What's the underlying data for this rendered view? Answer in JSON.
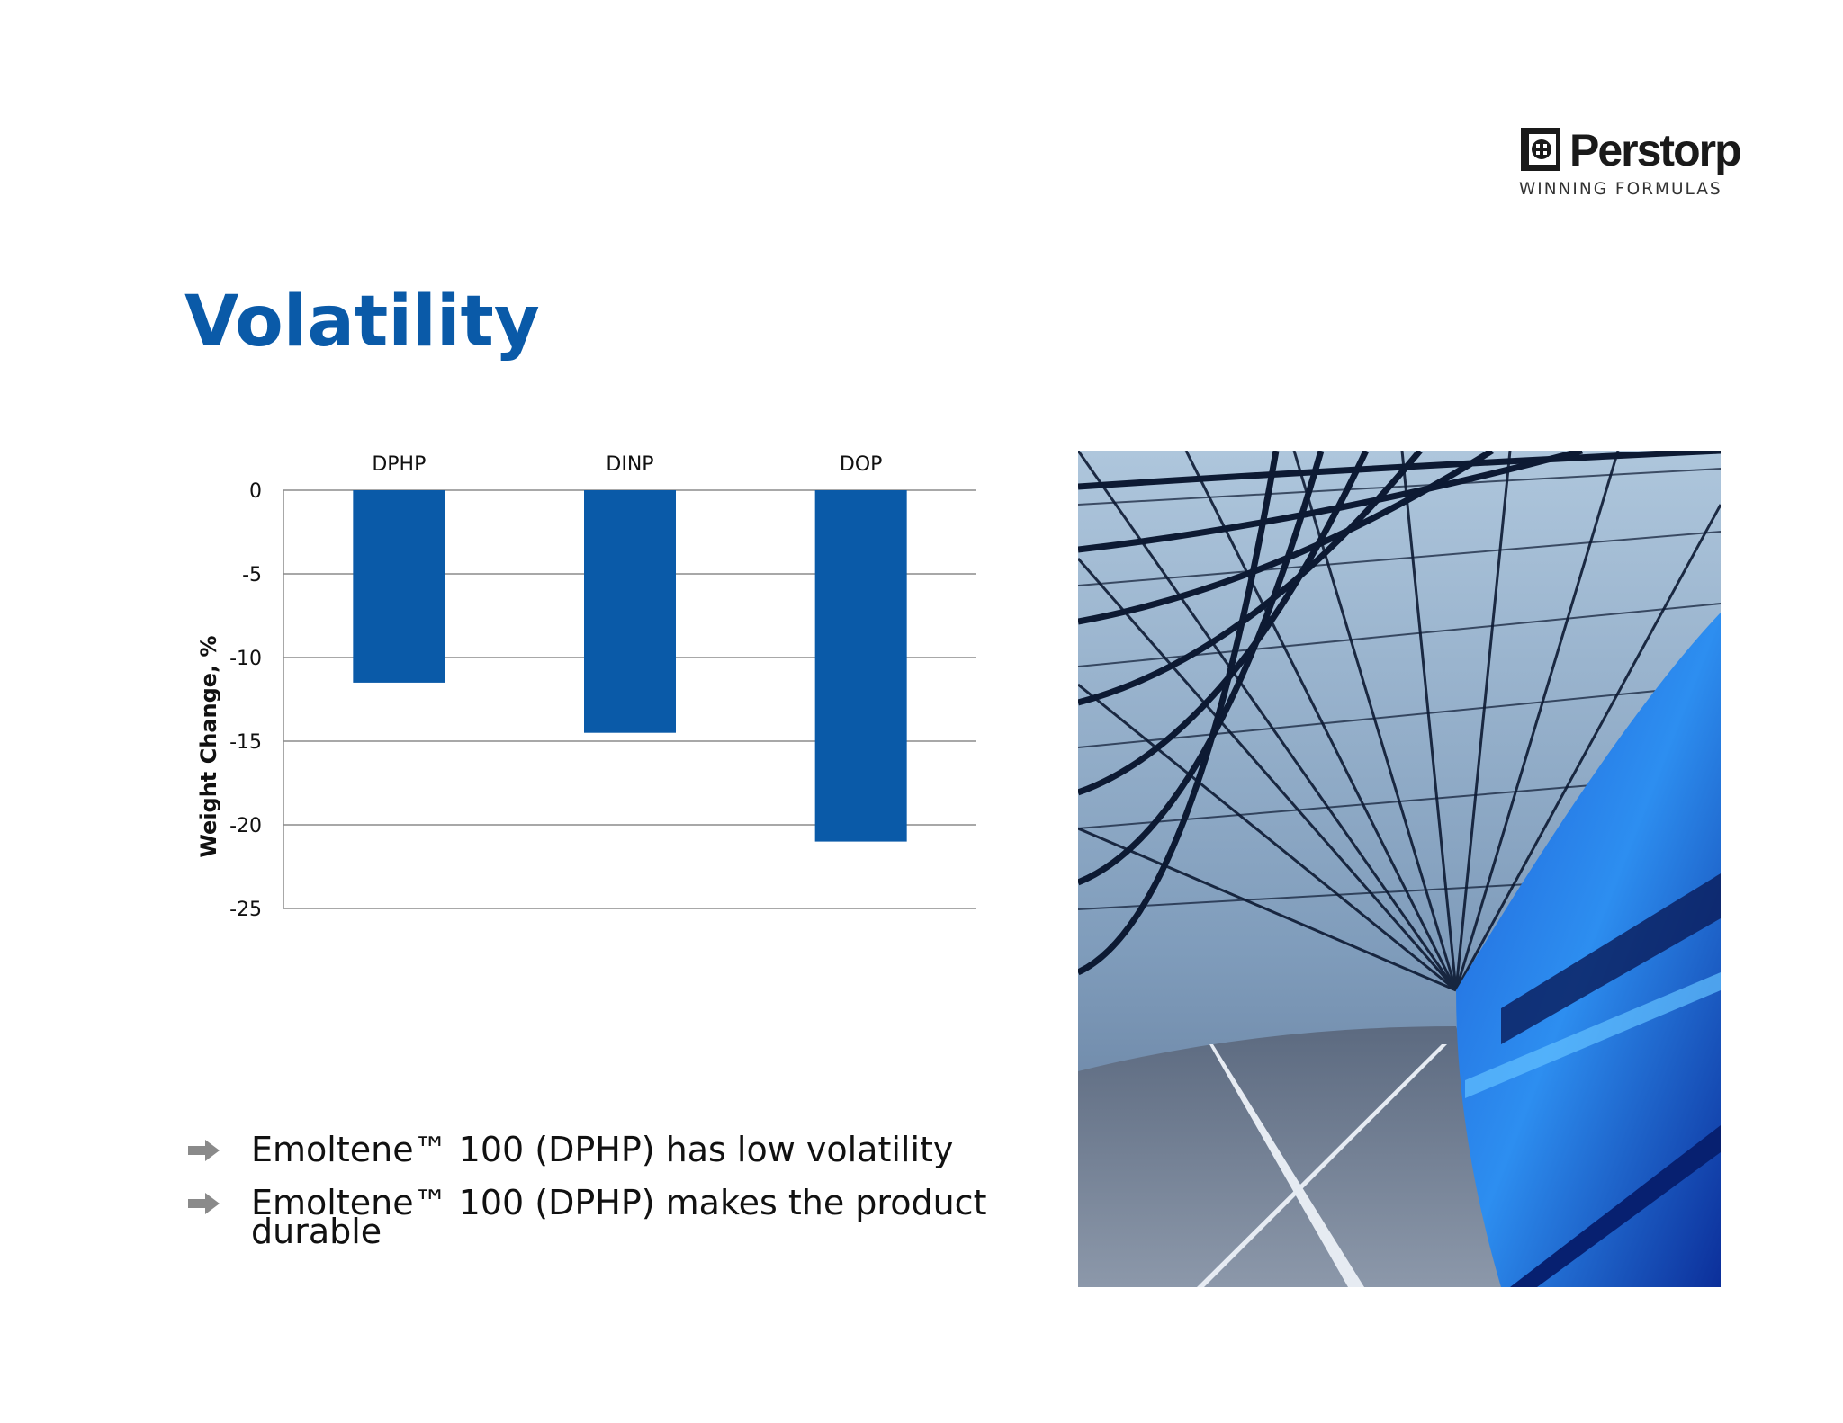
{
  "brand": {
    "name": "Perstorp",
    "tagline": "WINNING FORMULAS"
  },
  "title": "Volatility",
  "chart_data": {
    "type": "bar",
    "categories": [
      "DPHP",
      "DINP",
      "DOP"
    ],
    "values": [
      -11.5,
      -14.5,
      -21
    ],
    "ylabel": "Weight Change, %",
    "ylim": [
      -25,
      0
    ],
    "yticks": [
      0,
      -5,
      -10,
      -15,
      -20,
      -25
    ],
    "bar_color": "#0a5aa8",
    "grid": true,
    "category_labels_position": "top"
  },
  "bullets": [
    "Emoltene™ 100 (DPHP) has low volatility",
    "Emoltene™ 100 (DPHP) makes the product durable"
  ],
  "colors": {
    "accent": "#0a5aa8",
    "bullet_arrow": "#8a8a8a"
  },
  "icons": {
    "bullet": "arrow-right-icon",
    "logo": "perstorp-logo-mark"
  }
}
